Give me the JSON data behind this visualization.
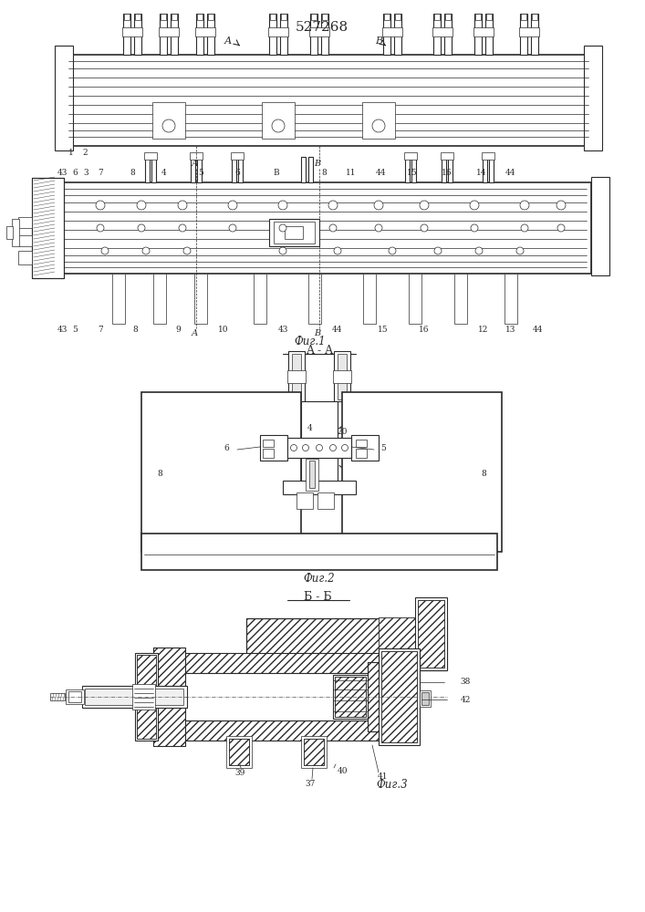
{
  "title": "527268",
  "fig1_caption": "Фиг.1",
  "fig2_caption": "Фиг.2",
  "fig3_caption": "Фиг.3",
  "section_AA": "A - A",
  "section_BB": "Б - Б",
  "bg_color": "#ffffff",
  "line_color": "#2a2a2a",
  "lw_thin": 0.5,
  "lw_mid": 0.8,
  "lw_thick": 1.2,
  "label_fs": 6.5,
  "caption_fs": 8.5,
  "title_fs": 11
}
